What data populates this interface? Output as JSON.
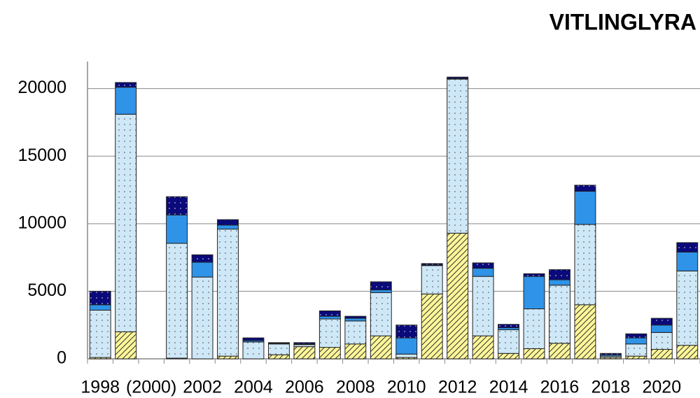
{
  "chart_data": {
    "type": "stacked-bar",
    "title": "VITLINGLYRA",
    "categories": [
      "1998",
      null,
      "(2000)",
      null,
      "2002",
      null,
      "2004",
      null,
      "2006",
      null,
      "2008",
      null,
      "2010",
      null,
      "2012",
      null,
      "2014",
      null,
      "2016",
      null,
      "2018",
      null,
      "2020",
      null
    ],
    "series": [
      {
        "color": "#fff799",
        "pattern": "hatch",
        "values": [
          100,
          2000,
          0,
          50,
          0,
          200,
          0,
          300,
          900,
          850,
          1100,
          1700,
          100,
          4800,
          9300,
          1700,
          400,
          750,
          1150,
          4000,
          100,
          200,
          700,
          1000
        ]
      },
      {
        "color": "#cfe8f8",
        "pattern": "dots",
        "values": [
          3500,
          16100,
          0,
          8500,
          6050,
          9400,
          1250,
          800,
          150,
          2100,
          1700,
          3200,
          250,
          2100,
          11400,
          4400,
          1750,
          2950,
          4300,
          5950,
          100,
          900,
          1250,
          5500
        ]
      },
      {
        "color": "#2f93e8",
        "pattern": "none",
        "values": [
          400,
          2000,
          0,
          2100,
          1100,
          300,
          100,
          50,
          50,
          200,
          200,
          200,
          1200,
          50,
          50,
          600,
          150,
          2400,
          400,
          2450,
          100,
          450,
          550,
          1400
        ]
      },
      {
        "color": "#0a0a7a",
        "pattern": "dots",
        "values": [
          1000,
          350,
          0,
          1350,
          550,
          400,
          200,
          50,
          100,
          400,
          150,
          600,
          950,
          100,
          100,
          400,
          250,
          200,
          750,
          450,
          100,
          300,
          500,
          700
        ]
      }
    ],
    "ylim": [
      0,
      22000
    ],
    "yticks": [
      0,
      5000,
      10000,
      15000,
      20000
    ],
    "grid": true
  }
}
